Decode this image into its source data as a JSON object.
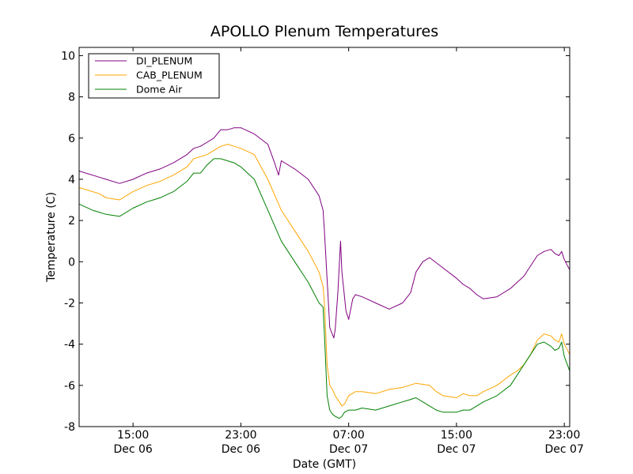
{
  "chart_data": {
    "type": "line",
    "title": "APOLLO Plenum Temperatures",
    "xlabel": "Date (GMT)",
    "ylabel": "Temperature (C)",
    "x_unit": "hours since Dec 06 00:00 GMT",
    "xlim": [
      11,
      47.4
    ],
    "ylim": [
      -8,
      10.4
    ],
    "yticks": [
      -8,
      -6,
      -4,
      -2,
      0,
      2,
      4,
      6,
      8,
      10
    ],
    "xticks": [
      {
        "value": 15,
        "time": "15:00",
        "date": "Dec 06"
      },
      {
        "value": 23,
        "time": "23:00",
        "date": "Dec 06"
      },
      {
        "value": 31,
        "time": "07:00",
        "date": "Dec 07"
      },
      {
        "value": 39,
        "time": "15:00",
        "date": "Dec 07"
      },
      {
        "value": 47,
        "time": "23:00",
        "date": "Dec 07"
      }
    ],
    "grid": false,
    "legend_position": "top-left",
    "series": [
      {
        "name": "DI_PLENUM",
        "color": "#800080",
        "x": [
          11,
          12.5,
          13,
          14,
          15,
          16,
          17,
          18,
          19,
          19.5,
          20,
          20.5,
          21,
          21.5,
          22,
          22.5,
          23,
          24,
          25,
          25.5,
          25.8,
          26,
          27,
          28,
          28.8,
          29.1,
          29.2,
          29.6,
          29.9,
          30,
          30.2,
          30.4,
          30.5,
          30.8,
          31,
          31.3,
          31.5,
          32,
          33,
          34,
          35,
          35.6,
          36,
          36.5,
          37,
          38,
          39,
          39.5,
          40,
          40.5,
          41,
          42,
          43,
          43.5,
          44,
          44.5,
          45,
          45.5,
          46,
          46.3,
          46.6,
          46.8,
          47,
          47.4
        ],
        "y": [
          4.4,
          4.1,
          4.0,
          3.8,
          4.0,
          4.3,
          4.5,
          4.8,
          5.2,
          5.5,
          5.6,
          5.8,
          6.0,
          6.4,
          6.4,
          6.5,
          6.5,
          6.2,
          5.7,
          4.8,
          4.2,
          4.9,
          4.5,
          4.0,
          3.2,
          2.5,
          1.5,
          -3.2,
          -3.7,
          -3.3,
          -1.5,
          1.0,
          -0.5,
          -2.4,
          -2.8,
          -1.8,
          -1.6,
          -1.7,
          -2.0,
          -2.3,
          -2.0,
          -1.5,
          -0.5,
          0.0,
          0.2,
          -0.3,
          -0.8,
          -1.1,
          -1.3,
          -1.6,
          -1.8,
          -1.7,
          -1.3,
          -1.0,
          -0.7,
          -0.2,
          0.3,
          0.5,
          0.6,
          0.4,
          0.3,
          0.5,
          0.1,
          -0.4
        ]
      },
      {
        "name": "CAB_PLENUM",
        "color": "#ffa500",
        "x": [
          11,
          12.5,
          13,
          14,
          15,
          16,
          17,
          18,
          19,
          19.5,
          20,
          20.5,
          21,
          21.5,
          22,
          22.5,
          23,
          24,
          25,
          26,
          27,
          28,
          28.8,
          29.1,
          29.2,
          29.4,
          29.6,
          29.8,
          30,
          30.3,
          30.5,
          30.7,
          31,
          31.5,
          32,
          33,
          34,
          35,
          35.5,
          36,
          37,
          37.5,
          38,
          39,
          39.5,
          40,
          40.5,
          41,
          42,
          43,
          43.5,
          44,
          44.5,
          45,
          45.5,
          46,
          46.3,
          46.6,
          46.8,
          47,
          47.4
        ],
        "y": [
          3.6,
          3.3,
          3.1,
          3.0,
          3.4,
          3.7,
          3.9,
          4.2,
          4.6,
          5.0,
          5.1,
          5.2,
          5.4,
          5.6,
          5.7,
          5.6,
          5.5,
          5.2,
          4.0,
          2.5,
          1.5,
          0.5,
          -0.5,
          -1.2,
          -2.0,
          -5.0,
          -6.0,
          -6.2,
          -6.5,
          -6.8,
          -7.0,
          -6.9,
          -6.5,
          -6.3,
          -6.3,
          -6.4,
          -6.2,
          -6.1,
          -6.0,
          -5.9,
          -6.0,
          -6.3,
          -6.5,
          -6.6,
          -6.4,
          -6.5,
          -6.5,
          -6.3,
          -6.0,
          -5.5,
          -5.3,
          -5.0,
          -4.5,
          -3.8,
          -3.5,
          -3.6,
          -3.8,
          -3.9,
          -3.5,
          -4.0,
          -4.5
        ]
      },
      {
        "name": "Dome Air",
        "color": "#008000",
        "x": [
          11,
          12,
          13,
          14,
          15,
          16,
          17,
          18,
          19,
          19.5,
          20,
          20.5,
          21,
          21.5,
          22,
          22.5,
          23,
          24,
          25,
          26,
          27,
          28,
          28.8,
          29.1,
          29.2,
          29.4,
          29.6,
          29.8,
          30,
          30.3,
          30.5,
          30.7,
          31,
          31.5,
          32,
          33,
          34,
          35,
          35.5,
          36,
          37,
          37.5,
          38,
          39,
          39.5,
          40,
          40.5,
          41,
          42,
          43,
          43.5,
          44,
          44.5,
          45,
          45.5,
          46,
          46.3,
          46.6,
          46.8,
          47,
          47.4
        ],
        "y": [
          2.8,
          2.5,
          2.3,
          2.2,
          2.6,
          2.9,
          3.1,
          3.4,
          3.9,
          4.3,
          4.3,
          4.7,
          5.0,
          5.0,
          4.9,
          4.8,
          4.6,
          4.0,
          2.5,
          1.0,
          0.0,
          -1.0,
          -2.0,
          -2.2,
          -3.5,
          -6.5,
          -7.2,
          -7.4,
          -7.5,
          -7.6,
          -7.5,
          -7.3,
          -7.2,
          -7.2,
          -7.1,
          -7.2,
          -7.0,
          -6.8,
          -6.7,
          -6.6,
          -7.0,
          -7.2,
          -7.3,
          -7.3,
          -7.2,
          -7.2,
          -7.0,
          -6.8,
          -6.5,
          -6.0,
          -5.5,
          -5.0,
          -4.5,
          -4.0,
          -3.9,
          -4.1,
          -4.3,
          -4.2,
          -3.9,
          -4.6,
          -5.3
        ]
      }
    ]
  }
}
